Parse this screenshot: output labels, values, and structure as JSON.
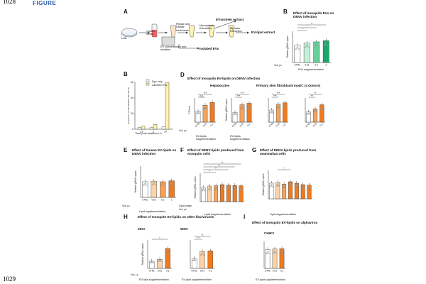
{
  "page": {
    "line_top": "1028",
    "line_bottom": "1029",
    "figure_word": "FIGURE"
  },
  "colors": {
    "white": "#ffffff",
    "light": "#fbd3a7",
    "mid": "#f7a35c",
    "dark": "#f07a1d",
    "green_light": "#c6f0d8",
    "green_mid": "#66d29a",
    "green_dark": "#1aa86a",
    "yellow": "#fff3b0",
    "outline": "#333333"
  },
  "panel_a": {
    "label": "A",
    "cells": "Cells",
    "culture": "Culture media",
    "ev_conc": "EV concentration and isolation",
    "rnase": "RNase and DNase treatments",
    "mono": "Monophasic Extraction",
    "biphasic": "Biphasic Extraction",
    "protein": "EV-protein extract",
    "lipid": "EV-lipid extract",
    "isolated": "Isolated EVs"
  },
  "panel_b": {
    "label": "B",
    "title": "Effect of mosquito EVs on DENV infection",
    "ylabel": "Relative gRNA copies",
    "vol_label": "Vol, µl",
    "xlabels": [
      "CTRL",
      "0.01",
      "0.1",
      "1"
    ],
    "xlabel": "EVs supplementation",
    "sig": [
      "*",
      "*",
      "**"
    ]
  },
  "panel_bb": {
    "label": "B",
    "legend": [
      "Dye only",
      "Labeled EVs"
    ],
    "ylabel": "Proportion of cells labelled with EV, %",
    "xlabel": "Time post treatment, h",
    "ticks": [
      "2.5",
      "6",
      "24"
    ],
    "yticks": [
      "0",
      "20",
      "40",
      "60"
    ]
  },
  "panel_d": {
    "label": "D",
    "title": "Effect of mosquito EV-lipids on DENV infection",
    "sub": [
      "Hepatocytes",
      "Primary skin fibroblasts",
      "moDC (4 donors)"
    ],
    "ylabel1": "FFU/ml",
    "ylabel2": "Relative gRNA copies",
    "vol_label": "Vol, µl",
    "xlabels": [
      "CTRL",
      "0.01",
      "0.1"
    ],
    "xlabel": "EV-lipids supplementation",
    "sig": [
      "***",
      "0.1",
      "***",
      "***",
      "***",
      "***",
      "*",
      "**",
      "**",
      "**"
    ]
  },
  "panel_e": {
    "label": "E",
    "title": "Effect of human EV-lipids on DENV infection",
    "ylabel": "Relative gRNA copies",
    "vol_label": "Vol, µl",
    "xlabels": [
      "CTRL",
      "0.01",
      "0.1",
      "1"
    ],
    "xlabel": "Lipid supplementation"
  },
  "panel_f": {
    "label": "F",
    "title": "Effect of DENV-lipids produced from mosquito cells",
    "ylabel": "Relative gRNA copies",
    "row1": "Lipid origin",
    "row2": "Vol, µl",
    "xlabel": "Lipid supplementation",
    "sig": [
      "**",
      "**",
      "**",
      "*"
    ]
  },
  "panel_g": {
    "label": "G",
    "title": "Effect of DENV-lipids produced from mammalian cells",
    "ylabel": "Relative gRNA copies",
    "xlabel": "Lipid supplementation",
    "sig": [
      "*"
    ]
  },
  "panel_h": {
    "label": "H",
    "title": "Effect of mosquito EV-lipids on other flaviviruses",
    "sub": [
      "ZIKV",
      "WNV"
    ],
    "ylabel": "Relative gRNA copies",
    "vol_label": "Vol, µl",
    "xlabels": [
      "CTRL",
      "0.01",
      "0.1"
    ],
    "xlabel": "EV-lipid supplementation",
    "sig": [
      "*",
      "**",
      "**"
    ]
  },
  "panel_i": {
    "label": "I",
    "title": "Effect of mosquito EV-lipids on alphavirus",
    "sub": "CHIKV",
    "xlabels": [
      "CTRL",
      "0.01",
      "0.1"
    ],
    "xlabel": "EV-lipid supplementation"
  }
}
